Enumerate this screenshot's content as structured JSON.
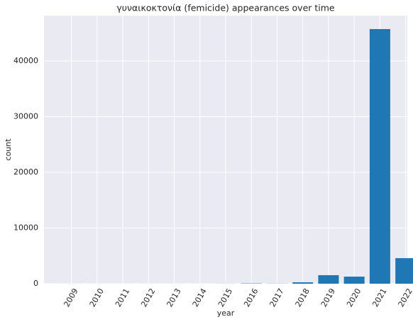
{
  "chart_data": {
    "type": "bar",
    "title": "γυναικοκτονία (femicide) appearances over time",
    "x_label": "year",
    "y_label": "count",
    "categories": [
      "2009",
      "2010",
      "2011",
      "2012",
      "2013",
      "2014",
      "2015",
      "2016",
      "2017",
      "2018",
      "2019",
      "2020",
      "2021",
      "2022"
    ],
    "values": [
      5,
      5,
      5,
      5,
      5,
      5,
      10,
      50,
      20,
      250,
      1530,
      1270,
      45730,
      4590
    ],
    "color": "#1f77b4",
    "ylim": [
      0,
      48150
    ],
    "yticks": [
      0,
      10000,
      20000,
      30000,
      40000
    ],
    "grid": true
  }
}
